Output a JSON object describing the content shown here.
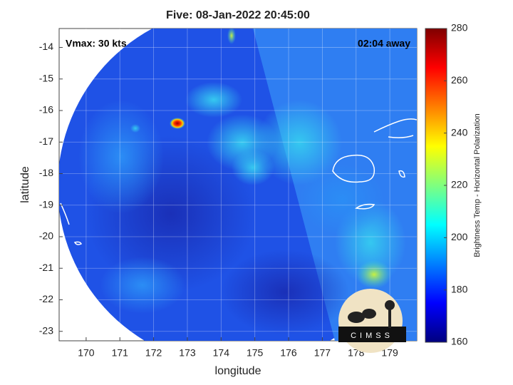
{
  "chart_data": {
    "type": "map",
    "title": "Five: 08-Jan-2022 20:45:00",
    "annotation_left": "Vmax: 30 kts",
    "annotation_right": "02:04 away",
    "x_label": "longitude",
    "y_label": "latitude",
    "xlim": [
      169.2,
      179.8
    ],
    "ylim": [
      -23.3,
      -13.4
    ],
    "xticks": [
      170,
      171,
      172,
      173,
      174,
      175,
      176,
      177,
      178,
      179
    ],
    "yticks": [
      -23,
      -22,
      -21,
      -20,
      -19,
      -18,
      -17,
      -16,
      -15,
      -14
    ],
    "grid": true,
    "logo_text": "CIMSS",
    "colorbar": {
      "label": "Brightness Temp - Horizontal Polarization",
      "colormap": "jet",
      "ylim": [
        160,
        280
      ],
      "yticks": [
        160,
        180,
        200,
        220,
        240,
        260,
        280
      ]
    }
  }
}
